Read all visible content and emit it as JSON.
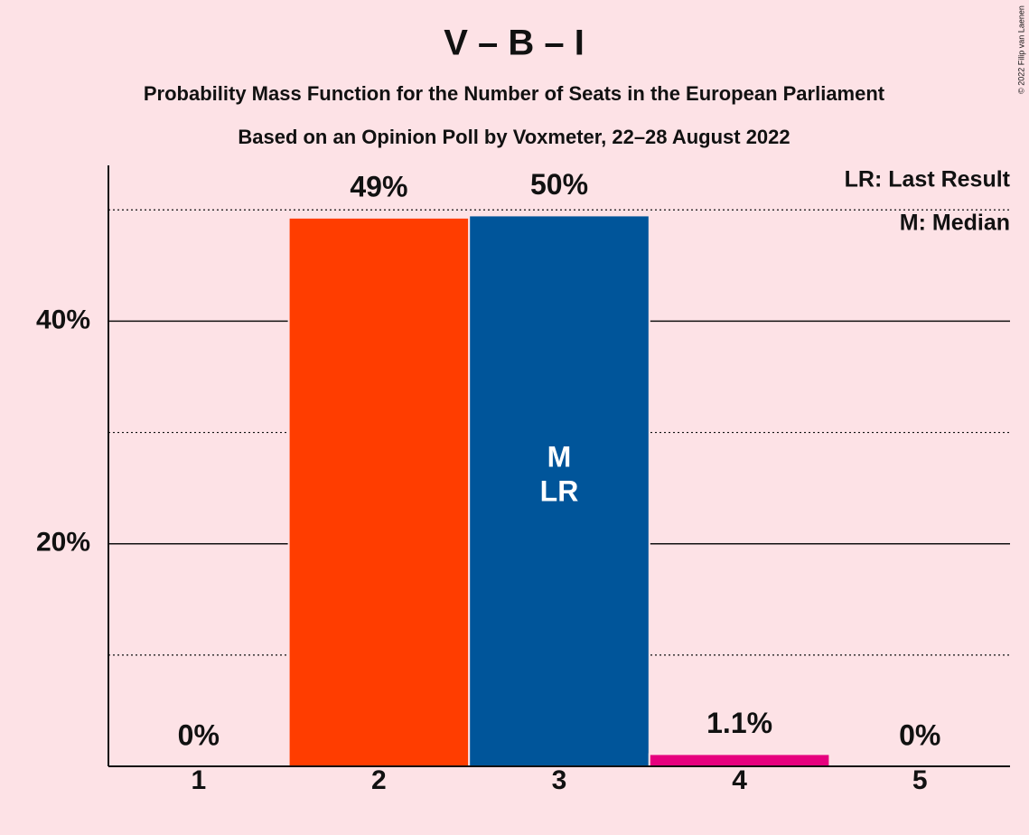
{
  "chart_data": {
    "type": "bar",
    "title": "V – B – I",
    "subtitle": "Probability Mass Function for the Number of Seats in the European Parliament",
    "subtitle2": "Based on an Opinion Poll by Voxmeter, 22–28 August 2022",
    "credit": "© 2022 Filip van Laenen",
    "categories": [
      "1",
      "2",
      "3",
      "4",
      "5"
    ],
    "values": [
      0,
      49.3,
      49.5,
      1.1,
      0
    ],
    "value_labels": [
      "0%",
      "49%",
      "50%",
      "1.1%",
      "0%"
    ],
    "colors": [
      null,
      "#ff3d00",
      "#00559a",
      "#e6007e",
      null
    ],
    "ylim": [
      0,
      54
    ],
    "yticks": [
      {
        "value": 20,
        "label": "20%"
      },
      {
        "value": 40,
        "label": "40%"
      }
    ],
    "minor_yticks": [
      10,
      30,
      50
    ],
    "grid": true,
    "annotations": [
      "M",
      "LR"
    ],
    "annotation_category": "3",
    "legend": [
      "LR: Last Result",
      "M: Median"
    ],
    "legend_position": "top-right"
  }
}
